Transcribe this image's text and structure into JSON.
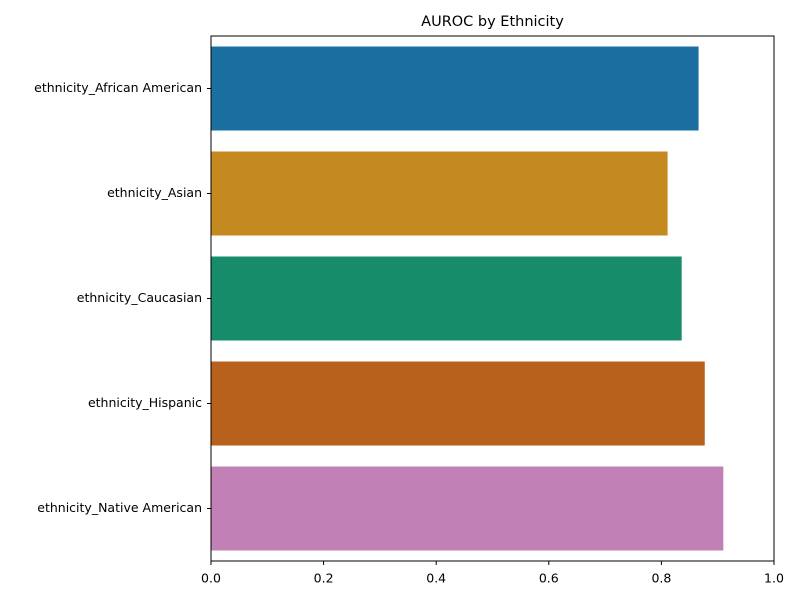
{
  "chart_data": {
    "type": "bar",
    "orientation": "horizontal",
    "title": "AUROC by Ethnicity",
    "xlabel": "",
    "ylabel": "",
    "categories": [
      "ethnicity_African American",
      "ethnicity_Asian",
      "ethnicity_Caucasian",
      "ethnicity_Hispanic",
      "ethnicity_Native American"
    ],
    "values": [
      0.866,
      0.811,
      0.836,
      0.877,
      0.91
    ],
    "colors": [
      "#1a6fa0",
      "#c48a20",
      "#168c6b",
      "#b8611d",
      "#c281b6"
    ],
    "xlim": [
      0,
      1
    ],
    "xticks": [
      0.0,
      0.2,
      0.4,
      0.6,
      0.8,
      1.0
    ],
    "xtick_labels": [
      "0.0",
      "0.2",
      "0.4",
      "0.6",
      "0.8",
      "1.0"
    ],
    "grid": false,
    "legend": false
  }
}
